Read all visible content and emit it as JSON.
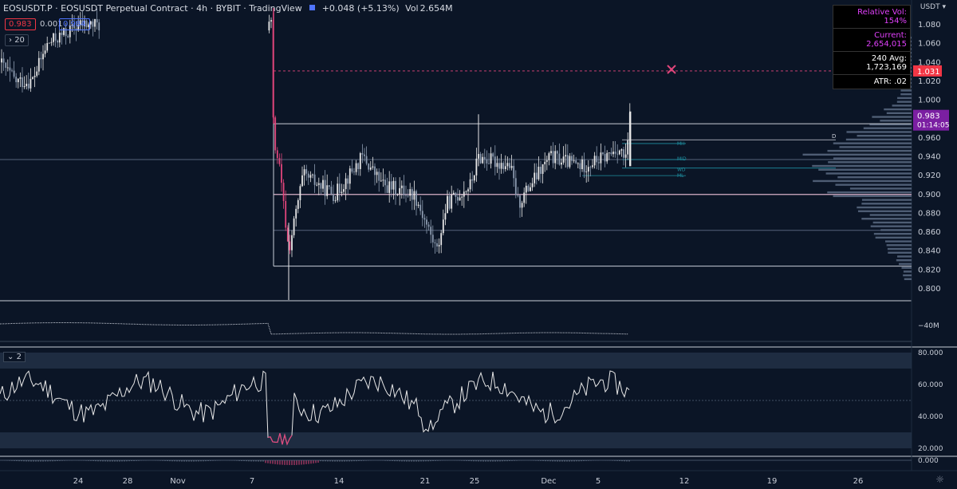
{
  "header": {
    "symbol": "EOSUSDT.P · EOSUSDT Perpetual Contract · 4h · BYBIT · TradingView",
    "change": "+0.048 (+5.13%)",
    "volume_label": "Vol",
    "volume_value": "2.654M",
    "bid": "0.983",
    "spread": "0.001",
    "ask": "0.984",
    "ma_length": "20",
    "currency": "USDT"
  },
  "stats_box": {
    "relative_vol": "Relative Vol: 154%",
    "current": "Current: 2,654,015",
    "avg": "240 Avg: 1,723,169",
    "atr": "ATR: .02"
  },
  "price_labels": {
    "level_red": "1.031",
    "last_price": "0.983",
    "countdown": "01:14:05"
  },
  "range_labels": {
    "d": "D",
    "mh": "MH",
    "mid": "MID",
    "wd": "WD",
    "ml": "ML"
  },
  "colors": {
    "background": "#0b1526",
    "candle_up": "#e8e8e8",
    "candle_down": "#8c9bb0",
    "accent_pink": "#e0457b",
    "last_price_bg": "#7b1fa2",
    "red_label": "#f23645",
    "teal": "#1e8fa0"
  },
  "chart_data": {
    "type": "candlestick",
    "price_axis": {
      "min": 0.79,
      "max": 1.09,
      "ticks": [
        "1.080",
        "1.060",
        "1.040",
        "1.020",
        "1.000",
        "0.960",
        "0.940",
        "0.920",
        "0.900",
        "0.880",
        "0.860",
        "0.840",
        "0.820",
        "0.800"
      ]
    },
    "time_ticks": [
      "24",
      "28",
      "Nov",
      "7",
      "14",
      "21",
      "25",
      "Dec",
      "5",
      "12",
      "19",
      "26"
    ],
    "last_price": 0.983,
    "levels": {
      "range_high": 0.975,
      "mh": 0.958,
      "mid": 0.937,
      "wd": 0.928,
      "ml": 0.92,
      "range_low_major": 0.9,
      "quarter_low": 0.862,
      "range_bottom": 0.824,
      "dashed_pink": 1.031
    },
    "volume_axis": {
      "label": "40M"
    },
    "oscillator": {
      "length": "2",
      "ticks": [
        "80.000",
        "60.000",
        "40.000",
        "20.000"
      ],
      "upper_band": [
        70,
        80
      ],
      "lower_band": [
        20,
        30
      ],
      "mid": 50,
      "min": 15,
      "max": 82
    },
    "macd": {
      "tick": "0.000"
    }
  }
}
